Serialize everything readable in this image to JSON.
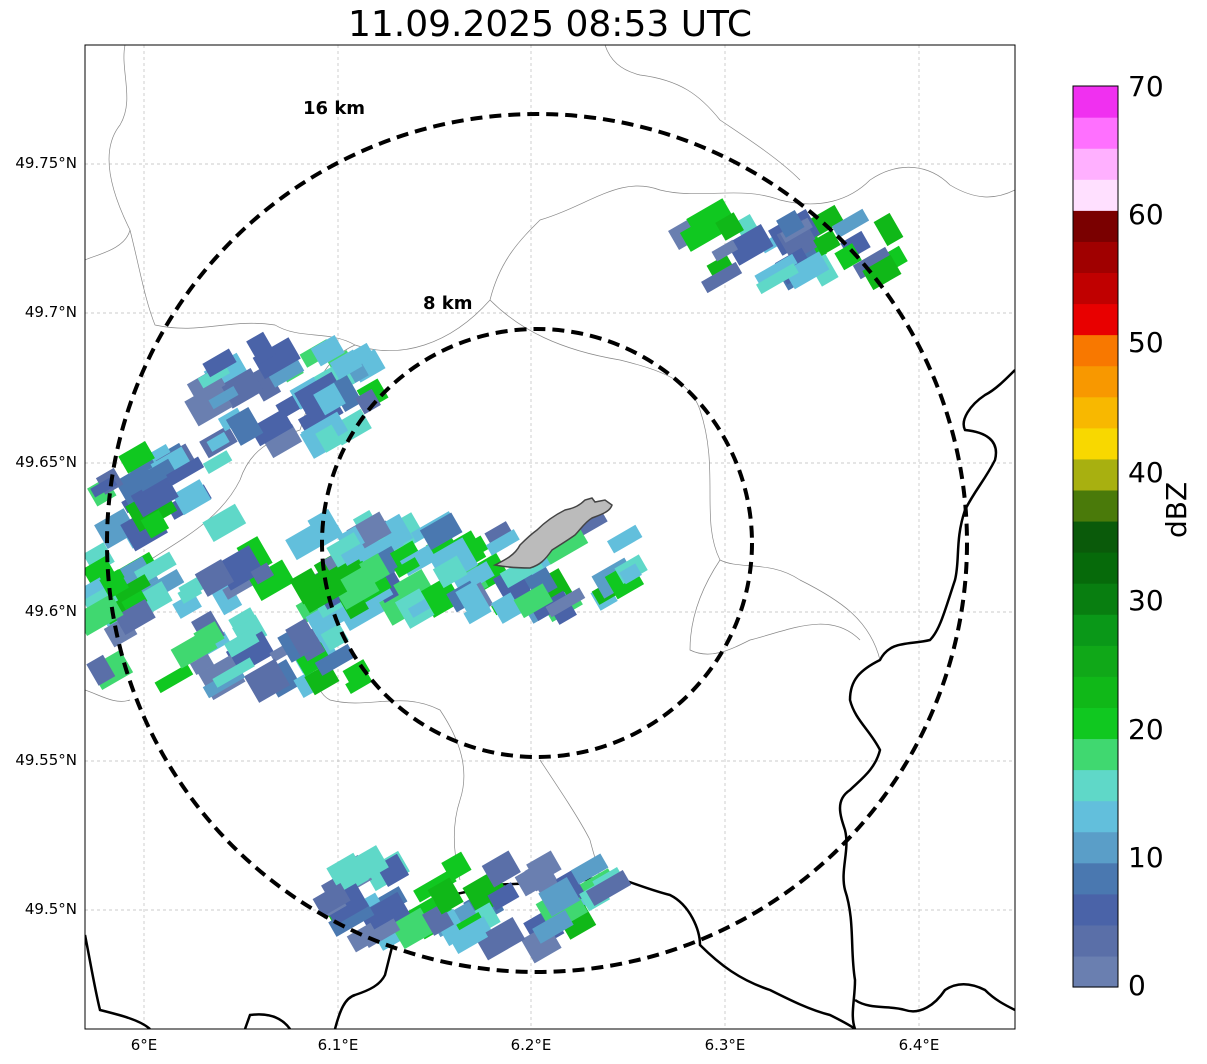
{
  "title": "11.09.2025 08:53 UTC",
  "axes": {
    "x_ticks": [
      "6°E",
      "6.1°E",
      "6.2°E",
      "6.3°E",
      "6.4°E"
    ],
    "y_ticks": [
      "49.75°N",
      "49.7°N",
      "49.65°N",
      "49.6°N",
      "49.55°N",
      "49.5°N"
    ],
    "x_tick_values": [
      6.0,
      6.1,
      6.2,
      6.3,
      6.4
    ],
    "y_tick_values": [
      49.75,
      49.7,
      49.65,
      49.6,
      49.55,
      49.5
    ],
    "lon_range": [
      5.97,
      6.45
    ],
    "lat_range": [
      49.46,
      49.79
    ],
    "grid": true
  },
  "rings": [
    {
      "label": "8 km",
      "radius_km": 8
    },
    {
      "label": "16 km",
      "radius_km": 16
    }
  ],
  "colorbar": {
    "label": "dBZ",
    "ticks": [
      "0",
      "10",
      "20",
      "30",
      "40",
      "50",
      "60",
      "70"
    ],
    "colors": [
      "#6a7fb0",
      "#5a6fa8",
      "#4a63a8",
      "#4a78b0",
      "#5a9ec8",
      "#62bfdc",
      "#5fd8c8",
      "#40d870",
      "#10c820",
      "#10b818",
      "#10a818",
      "#0a9818",
      "#087e10",
      "#066a0a",
      "#0a5a0a",
      "#4a7a0a",
      "#a8b010",
      "#f8d800",
      "#f8b800",
      "#f89800",
      "#f87800",
      "#e80000",
      "#c00000",
      "#a00000",
      "#7a0000",
      "#ffe0ff",
      "#ffb0ff",
      "#ff70ff",
      "#f030f0"
    ]
  }
}
